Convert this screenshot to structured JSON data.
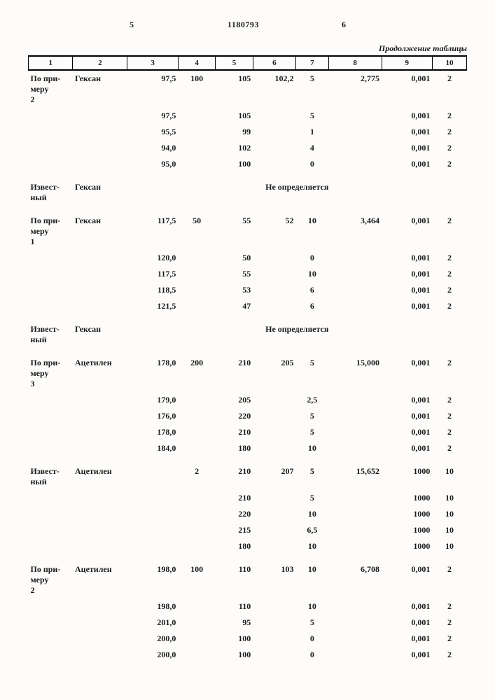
{
  "header": {
    "left_num": "5",
    "doc_num": "1180793",
    "right_num": "6",
    "continuation": "Продолжение таблицы"
  },
  "columns": [
    "1",
    "2",
    "3",
    "4",
    "5",
    "6",
    "7",
    "8",
    "9",
    "10"
  ],
  "not_determined_label": "Не определяется",
  "blocks": [
    {
      "c1": "По при-\nмеру\n2",
      "c2": "Гексан",
      "rows": [
        {
          "c3": "97,5",
          "c4": "100",
          "c5": "105",
          "c6": "102,2",
          "c7": "5",
          "c8": "2,775",
          "c9": "0,001",
          "c10": "2"
        },
        {
          "c3": "97,5",
          "c4": "",
          "c5": "105",
          "c6": "",
          "c7": "5",
          "c8": "",
          "c9": "0,001",
          "c10": "2"
        },
        {
          "c3": "95,5",
          "c4": "",
          "c5": "99",
          "c6": "",
          "c7": "1",
          "c8": "",
          "c9": "0,001",
          "c10": "2"
        },
        {
          "c3": "94,0",
          "c4": "",
          "c5": "102",
          "c6": "",
          "c7": "4",
          "c8": "",
          "c9": "0,001",
          "c10": "2"
        },
        {
          "c3": "95,0",
          "c4": "",
          "c5": "100",
          "c6": "",
          "c7": "0",
          "c8": "",
          "c9": "0,001",
          "c10": "2"
        }
      ]
    },
    {
      "c1": "Извест-\nный",
      "c2": "Гексан",
      "not_determined": true
    },
    {
      "c1": "По при-\nмеру\n1",
      "c2": "Гексан",
      "rows": [
        {
          "c3": "117,5",
          "c4": "50",
          "c5": "55",
          "c6": "52",
          "c7": "10",
          "c8": "3,464",
          "c9": "0,001",
          "c10": "2"
        },
        {
          "c3": "120,0",
          "c4": "",
          "c5": "50",
          "c6": "",
          "c7": "0",
          "c8": "",
          "c9": "0,001",
          "c10": "2"
        },
        {
          "c3": "117,5",
          "c4": "",
          "c5": "55",
          "c6": "",
          "c7": "10",
          "c8": "",
          "c9": "0,001",
          "c10": "2"
        },
        {
          "c3": "118,5",
          "c4": "",
          "c5": "53",
          "c6": "",
          "c7": "6",
          "c8": "",
          "c9": "0,001",
          "c10": "2"
        },
        {
          "c3": "121,5",
          "c4": "",
          "c5": "47",
          "c6": "",
          "c7": "6",
          "c8": "",
          "c9": "0,001",
          "c10": "2"
        }
      ]
    },
    {
      "c1": "Извест-\nный",
      "c2": "Гексан",
      "not_determined": true
    },
    {
      "c1": "По при-\nмеру\n3",
      "c2": "Ацетилен",
      "rows": [
        {
          "c3": "178,0",
          "c4": "200",
          "c5": "210",
          "c6": "205",
          "c7": "5",
          "c8": "15,000",
          "c9": "0,001",
          "c10": "2"
        },
        {
          "c3": "179,0",
          "c4": "",
          "c5": "205",
          "c6": "",
          "c7": "2,5",
          "c8": "",
          "c9": "0,001",
          "c10": "2"
        },
        {
          "c3": "176,0",
          "c4": "",
          "c5": "220",
          "c6": "",
          "c7": "5",
          "c8": "",
          "c9": "0,001",
          "c10": "2"
        },
        {
          "c3": "178,0",
          "c4": "",
          "c5": "210",
          "c6": "",
          "c7": "5",
          "c8": "",
          "c9": "0,001",
          "c10": "2"
        },
        {
          "c3": "184,0",
          "c4": "",
          "c5": "180",
          "c6": "",
          "c7": "10",
          "c8": "",
          "c9": "0,001",
          "c10": "2"
        }
      ]
    },
    {
      "c1": "Извест-\nный",
      "c2": "Ацетилен",
      "rows": [
        {
          "c3": "",
          "c4": "2",
          "c5": "210",
          "c6": "207",
          "c7": "5",
          "c8": "15,652",
          "c9": "1000",
          "c10": "10"
        },
        {
          "c3": "",
          "c4": "",
          "c5": "210",
          "c6": "",
          "c7": "5",
          "c8": "",
          "c9": "1000",
          "c10": "10"
        },
        {
          "c3": "",
          "c4": "",
          "c5": "220",
          "c6": "",
          "c7": "10",
          "c8": "",
          "c9": "1000",
          "c10": "10"
        },
        {
          "c3": "",
          "c4": "",
          "c5": "215",
          "c6": "",
          "c7": "6,5",
          "c8": "",
          "c9": "1000",
          "c10": "10"
        },
        {
          "c3": "",
          "c4": "",
          "c5": "180",
          "c6": "",
          "c7": "10",
          "c8": "",
          "c9": "1000",
          "c10": "10"
        }
      ]
    },
    {
      "c1": "По при-\nмеру\n2",
      "c2": "Ацетилен",
      "rows": [
        {
          "c3": "198,0",
          "c4": "100",
          "c5": "110",
          "c6": "103",
          "c7": "10",
          "c8": "6,708",
          "c9": "0,001",
          "c10": "2"
        },
        {
          "c3": "198,0",
          "c4": "",
          "c5": "110",
          "c6": "",
          "c7": "10",
          "c8": "",
          "c9": "0,001",
          "c10": "2"
        },
        {
          "c3": "201,0",
          "c4": "",
          "c5": "95",
          "c6": "",
          "c7": "5",
          "c8": "",
          "c9": "0,001",
          "c10": "2"
        },
        {
          "c3": "200,0",
          "c4": "",
          "c5": "100",
          "c6": "",
          "c7": "0",
          "c8": "",
          "c9": "0,001",
          "c10": "2"
        },
        {
          "c3": "200,0",
          "c4": "",
          "c5": "100",
          "c6": "",
          "c7": "0",
          "c8": "",
          "c9": "0,001",
          "c10": "2"
        }
      ]
    }
  ]
}
